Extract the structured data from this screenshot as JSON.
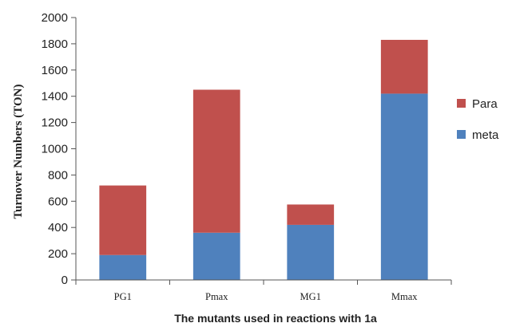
{
  "chart_data": {
    "type": "bar",
    "stacked": true,
    "categories": [
      "PG1",
      "Pmax",
      "MG1",
      "Mmax"
    ],
    "series": [
      {
        "name": "meta",
        "values": [
          190,
          360,
          420,
          1420
        ],
        "color": "#4f81bd"
      },
      {
        "name": "Para",
        "values": [
          530,
          1090,
          155,
          410
        ],
        "color": "#c0504d"
      }
    ],
    "legend_order": [
      "Para",
      "meta"
    ],
    "title": "",
    "xlabel": "The mutants used in reactions with 1a",
    "ylabel": "Turnover Numbers (TON)",
    "ylim": [
      0,
      2000
    ],
    "yticks": [
      0,
      200,
      400,
      600,
      800,
      1000,
      1200,
      1400,
      1600,
      1800,
      2000
    ],
    "grid": false,
    "legend_position": "right"
  }
}
